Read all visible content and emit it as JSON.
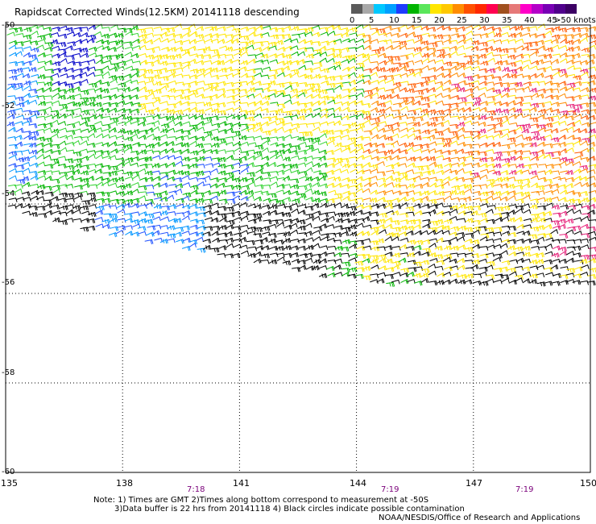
{
  "title": "Rapidscat Corrected Winds(12.5KM) 20141118 descending",
  "legend": {
    "labels": [
      "0",
      "5",
      "10",
      "15",
      "20",
      "25",
      "30",
      "35",
      "40",
      "45",
      ">50 knots"
    ],
    "colors": [
      "#5a5a5a",
      "#a8a8a8",
      "#00c8ff",
      "#00a0ff",
      "#1e3cff",
      "#00b400",
      "#5ae65a",
      "#ffe600",
      "#ffc800",
      "#ff8c00",
      "#ff5000",
      "#ff2800",
      "#ff0050",
      "#a0501e",
      "#e67878",
      "#ff00c8",
      "#b400c8",
      "#7800b4",
      "#50008c",
      "#3c0064"
    ]
  },
  "map": {
    "lat_labels": [
      "-50",
      "-52",
      "-54",
      "-56",
      "-58",
      "-60"
    ],
    "lat_values": [
      -50,
      -52,
      -54,
      -56,
      -58,
      -60
    ],
    "lon_labels": [
      "135",
      "138",
      "141",
      "144",
      "147",
      "150"
    ],
    "lon_values": [
      135,
      138,
      141,
      144,
      147,
      150
    ],
    "time_labels": [
      "7:18",
      "7:19",
      "7:19"
    ],
    "time_lon": [
      140.8,
      145.8,
      149.1
    ],
    "wind_legend_colors_note": "speed-colored barbs"
  },
  "notes": {
    "line1": "Note: 1) Times are GMT 2)Times along bottom correspond to measurement at -50S",
    "line2": "3)Data buffer is 22 hrs from 20141118 4) Black circles indicate possible contamination"
  },
  "credit": "NOAA/NESDIS/Office of Research and Applications"
}
